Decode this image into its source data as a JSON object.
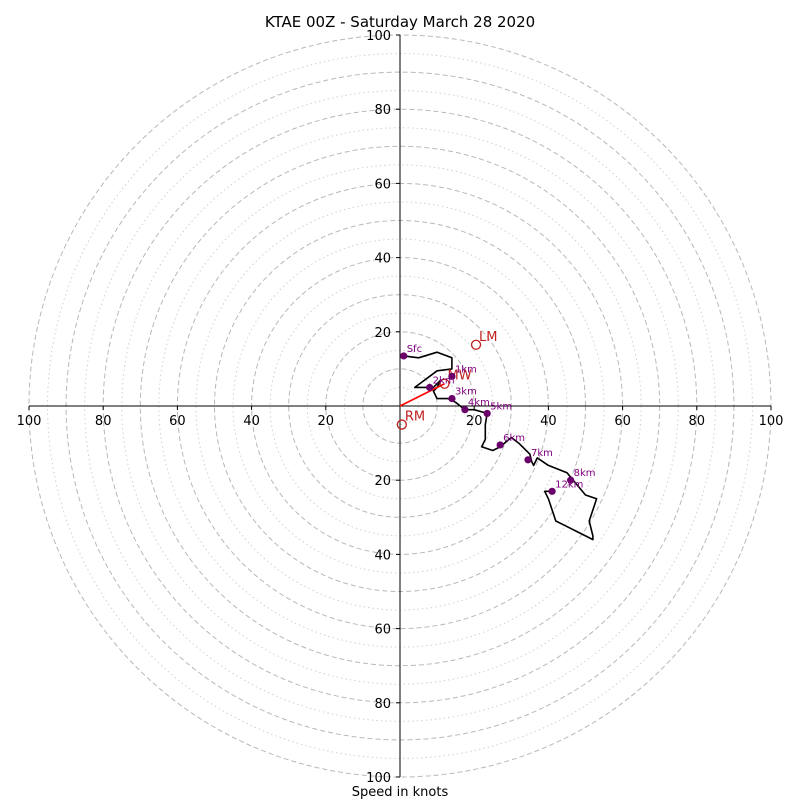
{
  "chart_data": {
    "type": "hodograph",
    "title": "KTAE 00Z - Saturday March 28 2020",
    "xlabel": "Speed in knots",
    "xlim": [
      -100,
      100
    ],
    "ylim": [
      -100,
      100
    ],
    "x_tick_labels": [
      "100",
      "80",
      "60",
      "40",
      "20",
      "20",
      "40",
      "60",
      "80",
      "100"
    ],
    "y_tick_labels": [
      "100",
      "80",
      "60",
      "40",
      "20",
      "20",
      "40",
      "60",
      "80",
      "100"
    ],
    "x_tick_values": [
      -100,
      -80,
      -60,
      -40,
      -20,
      20,
      40,
      60,
      80,
      100
    ],
    "y_tick_values": [
      100,
      80,
      60,
      40,
      20,
      -20,
      -40,
      -60,
      -80,
      -100
    ],
    "rings": {
      "major": [
        10,
        20,
        30,
        40,
        50,
        60,
        70,
        80,
        90,
        100
      ],
      "minor": [
        5,
        15,
        25,
        35,
        45,
        55,
        65,
        75,
        85,
        95
      ]
    },
    "hodograph_trace": [
      [
        1,
        13.5
      ],
      [
        5,
        13
      ],
      [
        10,
        14.5
      ],
      [
        14,
        13
      ],
      [
        14,
        10
      ],
      [
        10,
        9.5
      ],
      [
        4,
        5
      ],
      [
        9,
        5
      ],
      [
        11,
        7
      ],
      [
        10,
        5
      ],
      [
        9,
        4
      ],
      [
        10,
        2
      ],
      [
        13,
        2
      ],
      [
        15,
        1
      ],
      [
        17.5,
        -1
      ],
      [
        20,
        -1
      ],
      [
        23.5,
        -2
      ],
      [
        23,
        -5
      ],
      [
        23,
        -9
      ],
      [
        22,
        -11
      ],
      [
        25,
        -12
      ],
      [
        27,
        -11
      ],
      [
        30,
        -8.5
      ],
      [
        32,
        -10
      ],
      [
        35,
        -13
      ],
      [
        35.5,
        -15
      ],
      [
        36,
        -16
      ],
      [
        37,
        -14
      ],
      [
        40,
        -16
      ],
      [
        45,
        -18
      ],
      [
        50,
        -24
      ],
      [
        53,
        -25
      ],
      [
        52,
        -28
      ],
      [
        51,
        -31
      ],
      [
        52,
        -35
      ],
      [
        52,
        -36
      ],
      [
        50,
        -35
      ],
      [
        44,
        -32
      ],
      [
        42,
        -31
      ],
      [
        41,
        -28
      ],
      [
        40,
        -25
      ],
      [
        39,
        -23
      ],
      [
        41,
        -23
      ]
    ],
    "height_markers": [
      {
        "label": "Sfc",
        "u": 1,
        "v": 13.5
      },
      {
        "label": "1km",
        "u": 14,
        "v": 8
      },
      {
        "label": "2km",
        "u": 8,
        "v": 5
      },
      {
        "label": "3km",
        "u": 14,
        "v": 2
      },
      {
        "label": "4km",
        "u": 17.5,
        "v": -1
      },
      {
        "label": "5km",
        "u": 23.5,
        "v": -2
      },
      {
        "label": "6km",
        "u": 27,
        "v": -10.5
      },
      {
        "label": "7km",
        "u": 34.5,
        "v": -14.5
      },
      {
        "label": "8km",
        "u": 46,
        "v": -20
      },
      {
        "label": "12km",
        "u": 41,
        "v": -23
      }
    ],
    "storm_motion": {
      "mean_wind": {
        "label": "MW",
        "u": 12,
        "v": 6
      },
      "left_mover": {
        "label": "LM",
        "u": 20.5,
        "v": 16.5
      },
      "right_mover": {
        "label": "RM",
        "u": 0.5,
        "v": -5
      },
      "vector_to": "mean_wind"
    },
    "colors": {
      "trace": "#000000",
      "markers": "#6a006a",
      "marker_labels": "#800080",
      "storm_motion": "#c02020",
      "vector": "#ff0000",
      "grid": "#b8b8b8",
      "axes": "#000000"
    }
  }
}
